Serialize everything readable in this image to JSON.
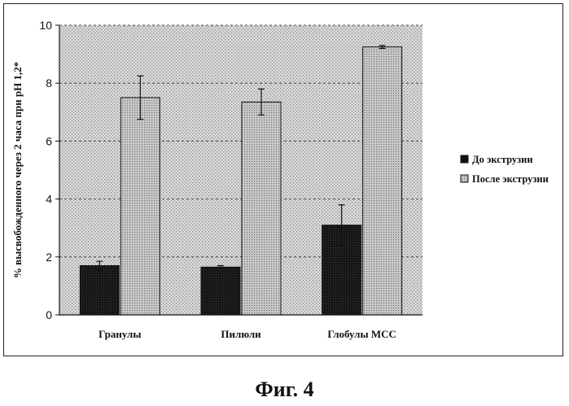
{
  "figure_caption": "Фиг. 4",
  "chart_data": {
    "type": "bar",
    "categories": [
      "Гранулы",
      "Пилюли",
      "Глобулы МСС"
    ],
    "series": [
      {
        "name": "До экструзии",
        "values": [
          1.7,
          1.65,
          3.1
        ],
        "errors": [
          0.15,
          0.05,
          0.7
        ],
        "color": "#111111"
      },
      {
        "name": "После экструзии",
        "values": [
          7.5,
          7.35,
          9.25
        ],
        "errors": [
          0.75,
          0.45,
          0.05
        ],
        "color": "#b8b8b8"
      }
    ],
    "ylabel": "% высвобожденного через 2 часа при pH 1,2*",
    "xlabel": "",
    "ylim": [
      0,
      10
    ],
    "yticks": [
      0,
      2,
      4,
      6,
      8,
      10
    ],
    "grid": true,
    "legend_position": "right"
  }
}
